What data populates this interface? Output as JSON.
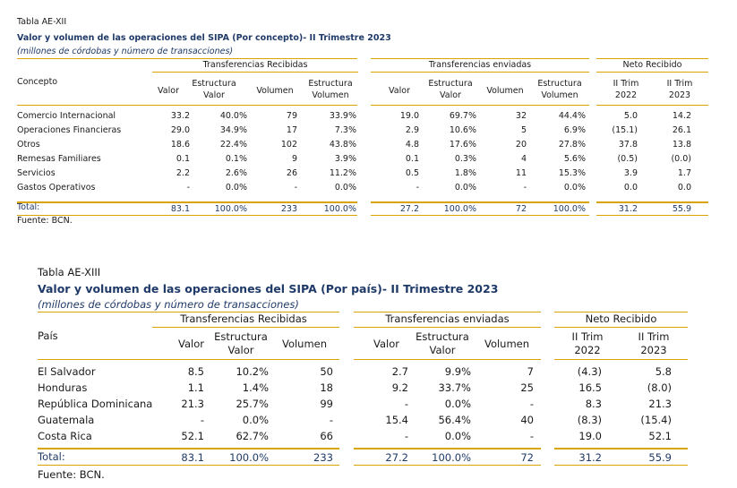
{
  "table1": {
    "label": "Tabla AE-XII",
    "title": "Valor y volumen de las operaciones del SIPA (Por concepto)- II Trimestre 2023",
    "subtitle": "(millones de córdobas y número de transacciones)",
    "group_headers": [
      "Transferencias Recibidas",
      "Transferencias enviadas",
      "Neto Recibido"
    ],
    "row_header": "Concepto",
    "col_headers": {
      "valor": "Valor",
      "estructura_valor_1": "Estructura",
      "estructura_valor_2": "Valor",
      "volumen": "Volumen",
      "estructura_volumen_1": "Estructura",
      "estructura_volumen_2": "Volumen",
      "trim2022_1": "II Trim",
      "trim2022_2": "2022",
      "trim2023_1": "II Trim",
      "trim2023_2": "2023"
    },
    "rows": [
      {
        "name": "Comercio Internacional",
        "r_valor": "33.2",
        "r_ev": "40.0%",
        "r_vol": "79",
        "r_evol": "33.9%",
        "e_valor": "19.0",
        "e_ev": "69.7%",
        "e_vol": "32",
        "e_evol": "44.4%",
        "n22": "5.0",
        "n23": "14.2"
      },
      {
        "name": "Operaciones Financieras",
        "r_valor": "29.0",
        "r_ev": "34.9%",
        "r_vol": "17",
        "r_evol": "7.3%",
        "e_valor": "2.9",
        "e_ev": "10.6%",
        "e_vol": "5",
        "e_evol": "6.9%",
        "n22": "(15.1)",
        "n23": "26.1"
      },
      {
        "name": "Otros",
        "r_valor": "18.6",
        "r_ev": "22.4%",
        "r_vol": "102",
        "r_evol": "43.8%",
        "e_valor": "4.8",
        "e_ev": "17.6%",
        "e_vol": "20",
        "e_evol": "27.8%",
        "n22": "37.8",
        "n23": "13.8"
      },
      {
        "name": "Remesas Familiares",
        "r_valor": "0.1",
        "r_ev": "0.1%",
        "r_vol": "9",
        "r_evol": "3.9%",
        "e_valor": "0.1",
        "e_ev": "0.3%",
        "e_vol": "4",
        "e_evol": "5.6%",
        "n22": "(0.5)",
        "n23": "(0.0)"
      },
      {
        "name": "Servicios",
        "r_valor": "2.2",
        "r_ev": "2.6%",
        "r_vol": "26",
        "r_evol": "11.2%",
        "e_valor": "0.5",
        "e_ev": "1.8%",
        "e_vol": "11",
        "e_evol": "15.3%",
        "n22": "3.9",
        "n23": "1.7"
      },
      {
        "name": "Gastos Operativos",
        "r_valor": "-",
        "r_ev": "0.0%",
        "r_vol": "-",
        "r_evol": "0.0%",
        "e_valor": "-",
        "e_ev": "0.0%",
        "e_vol": "-",
        "e_evol": "0.0%",
        "n22": "0.0",
        "n23": "0.0"
      }
    ],
    "total": {
      "name": "Total:",
      "r_valor": "83.1",
      "r_ev": "100.0%",
      "r_vol": "233",
      "r_evol": "100.0%",
      "e_valor": "27.2",
      "e_ev": "100.0%",
      "e_vol": "72",
      "e_evol": "100.0%",
      "n22": "31.2",
      "n23": "55.9"
    },
    "source": "Fuente: BCN."
  },
  "table2": {
    "label": "Tabla AE-XIII",
    "title": "Valor y volumen de las operaciones del SIPA (Por país)- II Trimestre 2023",
    "subtitle": "(millones de córdobas y número de transacciones)",
    "group_headers": [
      "Transferencias Recibidas",
      "Transferencias enviadas",
      "Neto Recibido"
    ],
    "row_header": "País",
    "col_headers": {
      "valor": "Valor",
      "estructura_valor_1": "Estructura",
      "estructura_valor_2": "Valor",
      "volumen": "Volumen",
      "trim2022_1": "II Trim",
      "trim2022_2": "2022",
      "trim2023_1": "II Trim",
      "trim2023_2": "2023"
    },
    "rows": [
      {
        "name": "El Salvador",
        "r_valor": "8.5",
        "r_ev": "10.2%",
        "r_vol": "50",
        "e_valor": "2.7",
        "e_ev": "9.9%",
        "e_vol": "7",
        "n22": "(4.3)",
        "n23": "5.8"
      },
      {
        "name": "Honduras",
        "r_valor": "1.1",
        "r_ev": "1.4%",
        "r_vol": "18",
        "e_valor": "9.2",
        "e_ev": "33.7%",
        "e_vol": "25",
        "n22": "16.5",
        "n23": "(8.0)"
      },
      {
        "name": "República Dominicana",
        "r_valor": "21.3",
        "r_ev": "25.7%",
        "r_vol": "99",
        "e_valor": "-",
        "e_ev": "0.0%",
        "e_vol": "-",
        "n22": "8.3",
        "n23": "21.3"
      },
      {
        "name": "Guatemala",
        "r_valor": "-",
        "r_ev": "0.0%",
        "r_vol": "-",
        "e_valor": "15.4",
        "e_ev": "56.4%",
        "e_vol": "40",
        "n22": "(8.3)",
        "n23": "(15.4)"
      },
      {
        "name": "Costa Rica",
        "r_valor": "52.1",
        "r_ev": "62.7%",
        "r_vol": "66",
        "e_valor": "-",
        "e_ev": "0.0%",
        "e_vol": "-",
        "n22": "19.0",
        "n23": "52.1"
      }
    ],
    "total": {
      "name": "Total:",
      "r_valor": "83.1",
      "r_ev": "100.0%",
      "r_vol": "233",
      "e_valor": "27.2",
      "e_ev": "100.0%",
      "e_vol": "72",
      "n22": "31.2",
      "n23": "55.9"
    },
    "source": "Fuente: BCN."
  }
}
